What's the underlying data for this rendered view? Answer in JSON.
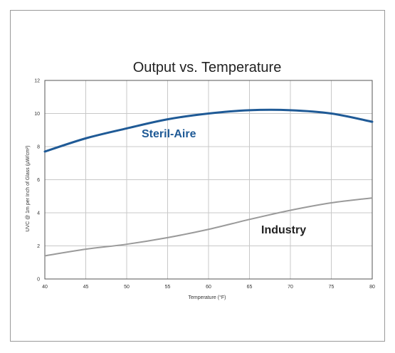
{
  "chart_data": {
    "type": "line",
    "title": "Output vs. Temperature",
    "xlabel": "Temperature (°F)",
    "ylabel": "UVC @ 1m per Inch of Glass (µW/cm²)",
    "xlim": [
      40,
      80
    ],
    "ylim": [
      0,
      12
    ],
    "x_ticks": [
      "40",
      "45",
      "50",
      "55",
      "60",
      "65",
      "70",
      "75",
      "80"
    ],
    "y_ticks": [
      "0",
      "2",
      "4",
      "6",
      "8",
      "10",
      "12"
    ],
    "grid": true,
    "series": [
      {
        "name": "Steril-Aire",
        "color": "#1f5a96",
        "x": [
          40,
          45,
          50,
          55,
          60,
          65,
          70,
          75,
          80
        ],
        "y": [
          7.7,
          8.5,
          9.1,
          9.65,
          10.0,
          10.2,
          10.2,
          10.0,
          9.5
        ]
      },
      {
        "name": "Industry",
        "color": "#9a9a9a",
        "x": [
          40,
          45,
          50,
          55,
          60,
          65,
          70,
          75,
          80
        ],
        "y": [
          1.4,
          1.8,
          2.1,
          2.5,
          3.0,
          3.6,
          4.15,
          4.6,
          4.9
        ]
      }
    ]
  }
}
